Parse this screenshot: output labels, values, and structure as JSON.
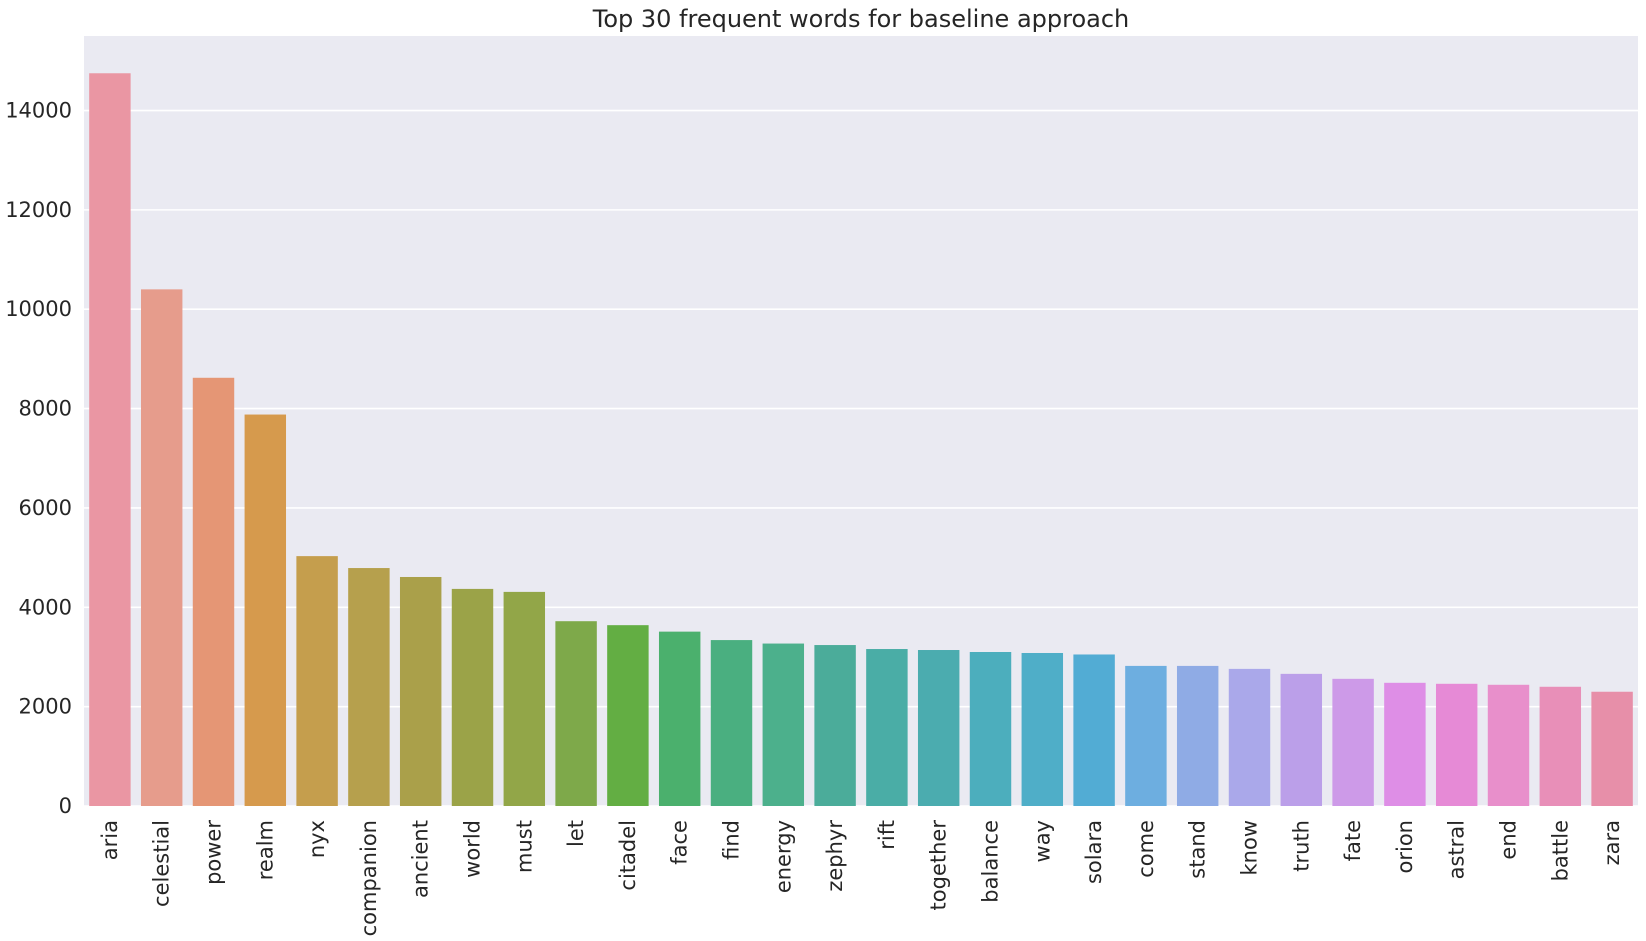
{
  "chart_data": {
    "type": "bar",
    "title": "Top 30 frequent words for baseline approach",
    "xlabel": "",
    "ylabel": "",
    "ylim": [
      0,
      15500
    ],
    "yticks": [
      0,
      2000,
      4000,
      6000,
      8000,
      10000,
      12000,
      14000
    ],
    "grid": true,
    "categories": [
      "aria",
      "celestial",
      "power",
      "realm",
      "nyx",
      "companion",
      "ancient",
      "world",
      "must",
      "let",
      "citadel",
      "face",
      "find",
      "energy",
      "zephyr",
      "rift",
      "together",
      "balance",
      "way",
      "solara",
      "come",
      "stand",
      "know",
      "truth",
      "fate",
      "orion",
      "astral",
      "end",
      "battle",
      "zara"
    ],
    "values": [
      14750,
      10400,
      8620,
      7880,
      5030,
      4790,
      4610,
      4370,
      4310,
      3720,
      3640,
      3510,
      3340,
      3270,
      3240,
      3160,
      3140,
      3100,
      3080,
      3050,
      2820,
      2820,
      2760,
      2660,
      2560,
      2480,
      2460,
      2440,
      2400,
      2300
    ],
    "colors": [
      "#ea96a3",
      "#e69c8c",
      "#e59675",
      "#d69a4d",
      "#c59e4d",
      "#b6a04d",
      "#aaa04a",
      "#9ba348",
      "#92a648",
      "#7ea94a",
      "#63ae43",
      "#4bb06d",
      "#4aaf80",
      "#4cb08c",
      "#4bac9a",
      "#4aada6",
      "#4bacaf",
      "#4caebd",
      "#4faec8",
      "#52acd4",
      "#6daee0",
      "#8fabe5",
      "#aaa8ea",
      "#bb9fe9",
      "#cd9ae8",
      "#de8ee6",
      "#e68ad6",
      "#e88fcb",
      "#e88fb8",
      "#e78fa9"
    ]
  }
}
